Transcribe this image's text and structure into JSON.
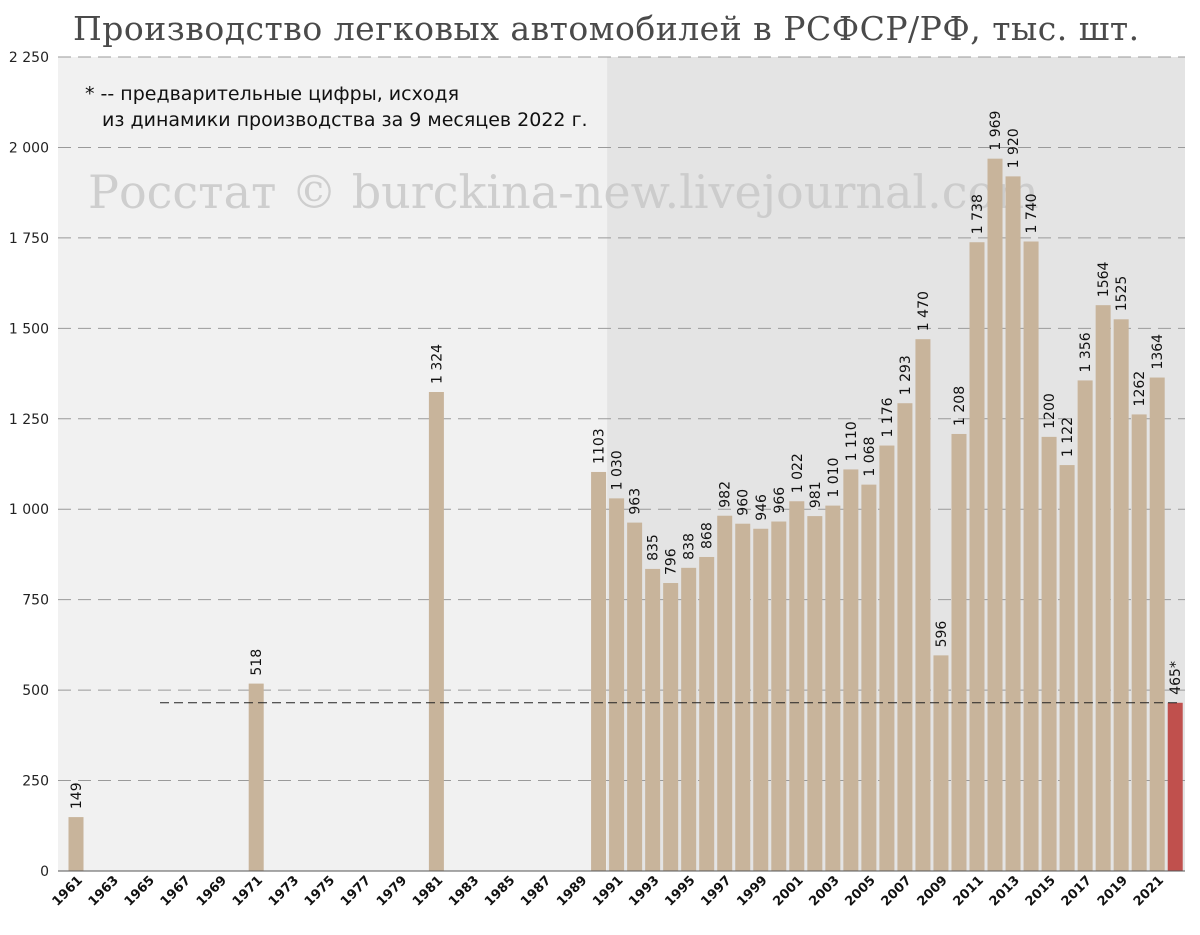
{
  "chart_data": {
    "type": "bar",
    "title": "Производство легковых автомобилей в РСФСР/РФ, тыс. шт.",
    "note_line1": "* -- предварительные цифры, исходя",
    "note_line2": "из динамики производства за 9 месяцев 2022 г.",
    "watermark": "Росстат © burckina-new.livejournal.com",
    "ylim": [
      0,
      2250
    ],
    "yticks": [
      0,
      250,
      500,
      750,
      1000,
      1250,
      1500,
      1750,
      2000,
      2250
    ],
    "ytick_labels": [
      "0",
      "250",
      "500",
      "750",
      "1 000",
      "1 250",
      "1 500",
      "1 750",
      "2 000",
      "2 250"
    ],
    "x_start": 1961,
    "x_end": 2022,
    "xtick_labels": [
      "1961",
      "1963",
      "1965",
      "1967",
      "1969",
      "1971",
      "1973",
      "1975",
      "1977",
      "1979",
      "1981",
      "1983",
      "1985",
      "1987",
      "1989",
      "1991",
      "1993",
      "1995",
      "1997",
      "1999",
      "2001",
      "2003",
      "2005",
      "2007",
      "2009",
      "2011",
      "2013",
      "2015",
      "2017",
      "2019",
      "2021"
    ],
    "reference_line": 465,
    "grid": true,
    "legend": "none",
    "colors": {
      "bar": "#c8b49b",
      "highlight_bar": "#c0504d",
      "bg_left": "#f1f1f1",
      "bg_right": "#e4e4e4",
      "grid": "#9a9a9a",
      "reference": "#222222"
    },
    "bars": [
      {
        "year": 1961,
        "value": 149,
        "label": "149"
      },
      {
        "year": 1971,
        "value": 518,
        "label": "518"
      },
      {
        "year": 1981,
        "value": 1324,
        "label": "1 324"
      },
      {
        "year": 1990,
        "value": 1103,
        "label": "1103"
      },
      {
        "year": 1991,
        "value": 1030,
        "label": "1 030"
      },
      {
        "year": 1992,
        "value": 963,
        "label": "963"
      },
      {
        "year": 1993,
        "value": 835,
        "label": "835"
      },
      {
        "year": 1994,
        "value": 796,
        "label": "796"
      },
      {
        "year": 1995,
        "value": 838,
        "label": "838"
      },
      {
        "year": 1996,
        "value": 868,
        "label": "868"
      },
      {
        "year": 1997,
        "value": 982,
        "label": "982"
      },
      {
        "year": 1998,
        "value": 960,
        "label": "960"
      },
      {
        "year": 1999,
        "value": 946,
        "label": "946"
      },
      {
        "year": 2000,
        "value": 966,
        "label": "966"
      },
      {
        "year": 2001,
        "value": 1022,
        "label": "1 022"
      },
      {
        "year": 2002,
        "value": 981,
        "label": "981"
      },
      {
        "year": 2003,
        "value": 1010,
        "label": "1 010"
      },
      {
        "year": 2004,
        "value": 1110,
        "label": "1 110"
      },
      {
        "year": 2005,
        "value": 1068,
        "label": "1 068"
      },
      {
        "year": 2006,
        "value": 1176,
        "label": "1 176"
      },
      {
        "year": 2007,
        "value": 1293,
        "label": "1 293"
      },
      {
        "year": 2008,
        "value": 1470,
        "label": "1 470"
      },
      {
        "year": 2009,
        "value": 596,
        "label": "596"
      },
      {
        "year": 2010,
        "value": 1208,
        "label": "1 208"
      },
      {
        "year": 2011,
        "value": 1738,
        "label": "1 738"
      },
      {
        "year": 2012,
        "value": 1969,
        "label": "1 969"
      },
      {
        "year": 2013,
        "value": 1920,
        "label": "1 920"
      },
      {
        "year": 2014,
        "value": 1740,
        "label": "1 740"
      },
      {
        "year": 2015,
        "value": 1200,
        "label": "1200"
      },
      {
        "year": 2016,
        "value": 1122,
        "label": "1 122"
      },
      {
        "year": 2017,
        "value": 1356,
        "label": "1 356"
      },
      {
        "year": 2018,
        "value": 1564,
        "label": "1564"
      },
      {
        "year": 2019,
        "value": 1525,
        "label": "1525"
      },
      {
        "year": 2020,
        "value": 1262,
        "label": "1262"
      },
      {
        "year": 2021,
        "value": 1364,
        "label": "1364"
      },
      {
        "year": 2022,
        "value": 465,
        "label": "465*",
        "highlight": true
      }
    ]
  }
}
